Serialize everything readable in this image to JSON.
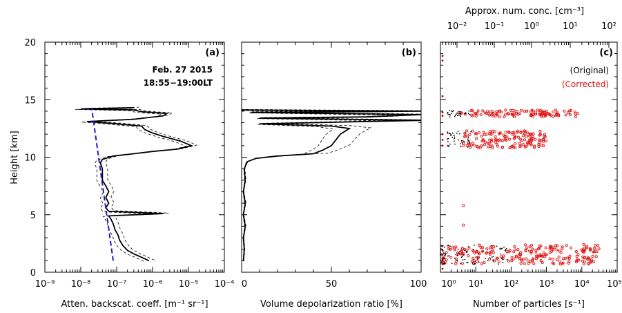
{
  "chart_data": [
    {
      "panel": "(a)",
      "type": "line",
      "xscale": "log",
      "xlim": [
        1e-09,
        0.0001
      ],
      "ylim": [
        0,
        20
      ],
      "xticks": [
        "10⁻⁹",
        "10⁻⁸",
        "10⁻⁷",
        "10⁻⁶",
        "10⁻⁵",
        "10⁻⁴"
      ],
      "yticks": [
        "0",
        "5",
        "10",
        "15",
        "20"
      ],
      "xlabel": "Atten. backscat. coeff. [m⁻¹ sr⁻¹]",
      "ylabel": "Height [km]",
      "date_text": "Feb. 27 2015",
      "time_text": "18:55−19:00LT",
      "series": [
        {
          "style": "solid-thick",
          "color": "#000000",
          "points": [
            [
              8e-07,
              1.0
            ],
            [
              5e-07,
              1.3
            ],
            [
              3e-07,
              1.6
            ],
            [
              2e-07,
              1.9
            ],
            [
              1.5e-07,
              2.3
            ],
            [
              1.2e-07,
              2.8
            ],
            [
              1.1e-07,
              3.2
            ],
            [
              9e-08,
              3.7
            ],
            [
              8e-08,
              4.2
            ],
            [
              7e-08,
              4.6
            ],
            [
              6e-08,
              4.9
            ],
            [
              2e-06,
              5.1
            ],
            [
              6e-08,
              5.3
            ],
            [
              5e-08,
              5.6
            ],
            [
              6e-08,
              6.0
            ],
            [
              5e-08,
              6.5
            ],
            [
              6e-08,
              7.0
            ],
            [
              5e-08,
              7.5
            ],
            [
              4e-08,
              8.0
            ],
            [
              4e-08,
              8.6
            ],
            [
              4e-08,
              9.0
            ],
            [
              3.5e-08,
              9.5
            ],
            [
              4e-08,
              9.8
            ],
            [
              8e-08,
              10.1
            ],
            [
              3e-07,
              10.3
            ],
            [
              1e-06,
              10.5
            ],
            [
              5e-06,
              10.7
            ],
            [
              1.2e-05,
              11.0
            ],
            [
              6e-06,
              11.4
            ],
            [
              2e-06,
              11.8
            ],
            [
              1e-06,
              12.1
            ],
            [
              6e-07,
              12.4
            ],
            [
              5e-07,
              12.7
            ],
            [
              1e-07,
              12.9
            ],
            [
              1.5e-08,
              13.1
            ],
            [
              3e-07,
              13.3
            ],
            [
              2e-06,
              13.6
            ],
            [
              2.5e-06,
              13.8
            ],
            [
              5e-07,
              13.95
            ],
            [
              3e-07,
              14.1
            ],
            [
              1e-08,
              14.2
            ],
            [
              3e-07,
              14.3
            ]
          ]
        },
        {
          "style": "dashed-fit",
          "color": "#1a1ad6",
          "points": [
            [
              8e-08,
              1.0
            ],
            [
              2e-08,
              14.3
            ]
          ]
        }
      ]
    },
    {
      "panel": "(b)",
      "type": "line",
      "xlim": [
        0,
        100
      ],
      "ylim": [
        0,
        20
      ],
      "xticks": [
        "0",
        "50",
        "100"
      ],
      "xlabel": "Volume depolarization ratio [%]",
      "series": [
        {
          "style": "solid-thick",
          "color": "#000000",
          "points": [
            [
              1,
              1.0
            ],
            [
              1.5,
              2.0
            ],
            [
              1,
              3.0
            ],
            [
              2,
              4.0
            ],
            [
              1,
              5.0
            ],
            [
              2,
              6.0
            ],
            [
              1,
              7.0
            ],
            [
              2,
              8.0
            ],
            [
              1.5,
              9.0
            ],
            [
              3,
              9.6
            ],
            [
              8,
              9.9
            ],
            [
              20,
              10.1
            ],
            [
              40,
              10.3
            ],
            [
              45,
              10.6
            ],
            [
              50,
              11.0
            ],
            [
              52,
              11.4
            ],
            [
              55,
              12.0
            ],
            [
              60,
              12.5
            ],
            [
              50,
              12.7
            ],
            [
              10,
              12.9
            ],
            [
              100,
              13.2
            ],
            [
              10,
              13.4
            ],
            [
              70,
              13.5
            ],
            [
              100,
              13.7
            ],
            [
              5,
              13.9
            ],
            [
              100,
              14.0
            ],
            [
              0,
              14.1
            ]
          ]
        }
      ]
    },
    {
      "panel": "(c)",
      "type": "scatter",
      "xscale": "log",
      "xlim": [
        1,
        100000
      ],
      "ylim": [
        0,
        20
      ],
      "xticks": [
        "10⁰",
        "10¹",
        "10²",
        "10³",
        "10⁴",
        "10⁵"
      ],
      "xlabel": "Number of particles [s⁻¹]",
      "top_xlabel": "Approx. num. conc. [cm⁻³]",
      "top_xticks": [
        "10⁻²",
        "10⁻¹",
        "10⁰",
        "10¹",
        "10²"
      ],
      "legend": [
        {
          "label": "(Original)",
          "color": "#000000"
        },
        {
          "label": "(Corrected)",
          "color": "#e01010"
        }
      ],
      "clusters": [
        {
          "series": "(Corrected)",
          "y_range": [
            13.5,
            14.1
          ],
          "x_range_log": [
            0.5,
            3.9
          ],
          "n": 110
        },
        {
          "series": "(Corrected)",
          "y_range": [
            10.8,
            12.3
          ],
          "x_range_log": [
            0.6,
            3.0
          ],
          "n": 150
        },
        {
          "series": "(Corrected)",
          "y_range": [
            0.7,
            2.4
          ],
          "x_range_log": [
            0.0,
            4.5
          ],
          "n": 220
        },
        {
          "series": "(Original)",
          "y_range": [
            13.5,
            14.1
          ],
          "x_range_log": [
            0.2,
            0.9
          ],
          "n": 30
        },
        {
          "series": "(Original)",
          "y_range": [
            10.8,
            12.3
          ],
          "x_range_log": [
            0.2,
            0.9
          ],
          "n": 40
        },
        {
          "series": "(Original)",
          "y_range": [
            0.7,
            2.4
          ],
          "x_range_log": [
            0.0,
            2.0
          ],
          "n": 90
        }
      ]
    }
  ]
}
